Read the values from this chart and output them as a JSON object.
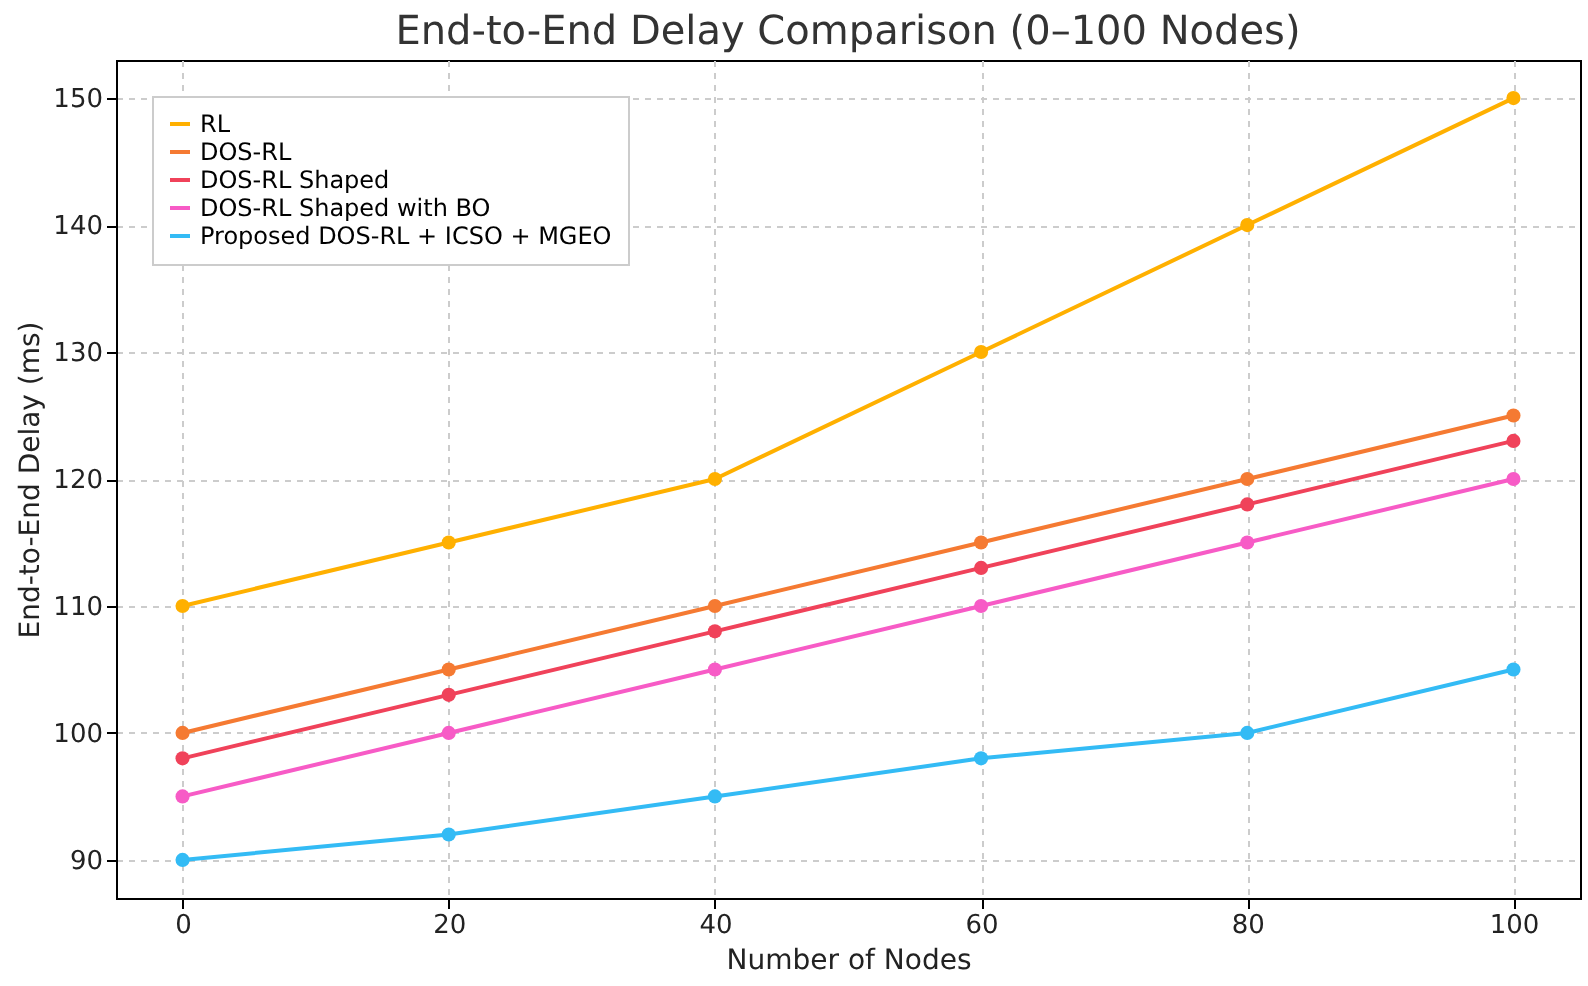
{
  "chart_data": {
    "type": "line",
    "title": "End-to-End Delay Comparison (0–100 Nodes)",
    "xlabel": "Number of Nodes",
    "ylabel": "End-to-End Delay (ms)",
    "x": [
      0,
      20,
      40,
      60,
      80,
      100
    ],
    "series": [
      {
        "name": "RL",
        "color": "#ffb000",
        "values": [
          110,
          115,
          120,
          130,
          140,
          150
        ]
      },
      {
        "name": "DOS-RL",
        "color": "#f57a32",
        "values": [
          100,
          105,
          110,
          115,
          120,
          125
        ]
      },
      {
        "name": "DOS-RL Shaped",
        "color": "#f0425a",
        "values": [
          98,
          103,
          108,
          113,
          118,
          123
        ]
      },
      {
        "name": "DOS-RL Shaped with BO",
        "color": "#f75bc6",
        "values": [
          95,
          100,
          105,
          110,
          115,
          120
        ]
      },
      {
        "name": "Proposed DOS-RL + ICSO + MGEO",
        "color": "#33bbf5",
        "values": [
          90,
          92,
          95,
          98,
          100,
          105
        ]
      }
    ],
    "xlim": [
      -5,
      105
    ],
    "xticks": [
      0,
      20,
      40,
      60,
      80,
      100
    ],
    "ylim": [
      87,
      153
    ],
    "yticks": [
      90,
      100,
      110,
      120,
      130,
      140,
      150
    ],
    "grid": true,
    "legend": "top left",
    "marker": "circle",
    "line_style": "solid"
  }
}
